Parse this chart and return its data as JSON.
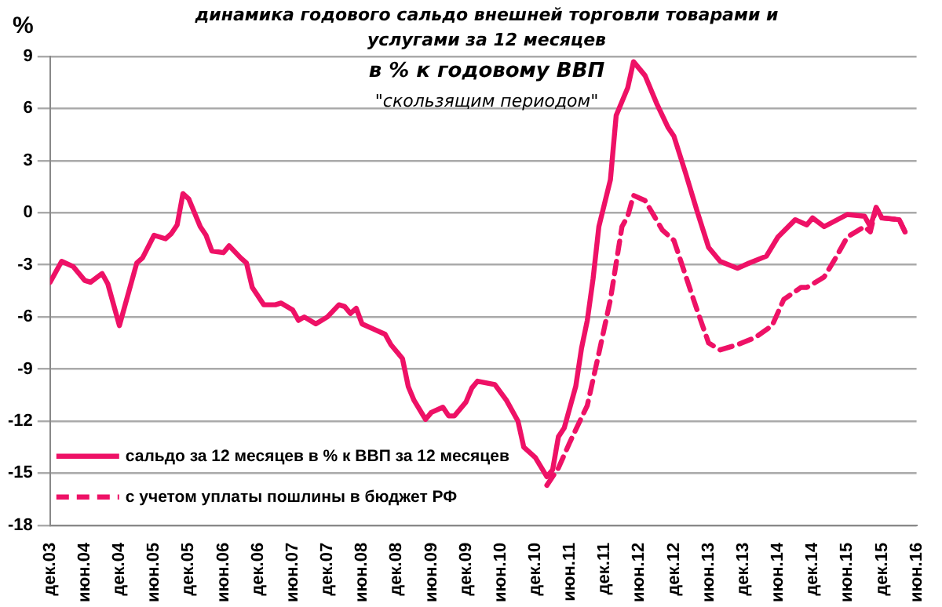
{
  "chart_data": {
    "type": "line",
    "title": "динамика годового сальдо внешней торговли товарами и услугами за 12 месяцев",
    "subtitle": "в % к годовому ВВП",
    "annotations": [
      "\"скользящим периодом\""
    ],
    "ylabel": "%",
    "xlim": [
      "2003-12",
      "2016-06"
    ],
    "xticks": [
      {
        "value": "2003-12",
        "label": "дек.03"
      },
      {
        "value": "2004-06",
        "label": "июн.04"
      },
      {
        "value": "2004-12",
        "label": "дек.04"
      },
      {
        "value": "2005-06",
        "label": "июн.05"
      },
      {
        "value": "2005-12",
        "label": "дек.05"
      },
      {
        "value": "2006-06",
        "label": "июн.06"
      },
      {
        "value": "2006-12",
        "label": "дек.06"
      },
      {
        "value": "2007-06",
        "label": "июн.07"
      },
      {
        "value": "2007-12",
        "label": "дек.07"
      },
      {
        "value": "2008-06",
        "label": "июн.08"
      },
      {
        "value": "2008-12",
        "label": "дек.08"
      },
      {
        "value": "2009-06",
        "label": "июн.09"
      },
      {
        "value": "2009-12",
        "label": "дек.09"
      },
      {
        "value": "2010-06",
        "label": "июн.10"
      },
      {
        "value": "2010-12",
        "label": "дек.10"
      },
      {
        "value": "2011-06",
        "label": "июн.11"
      },
      {
        "value": "2011-12",
        "label": "дек.11"
      },
      {
        "value": "2012-06",
        "label": "июн.12"
      },
      {
        "value": "2012-12",
        "label": "дек.12"
      },
      {
        "value": "2013-06",
        "label": "июн.13"
      },
      {
        "value": "2013-12",
        "label": "дек.13"
      },
      {
        "value": "2014-06",
        "label": "июн.14"
      },
      {
        "value": "2014-12",
        "label": "дек.14"
      },
      {
        "value": "2015-06",
        "label": "июн.15"
      },
      {
        "value": "2015-12",
        "label": "дек.15"
      },
      {
        "value": "2016-06",
        "label": "июн.16"
      }
    ],
    "ylim": [
      -18,
      9
    ],
    "yticks": [
      -18,
      -15,
      -12,
      -9,
      -6,
      -3,
      0,
      3,
      6,
      9
    ],
    "grid": "y",
    "legend": "bottom left",
    "marker": "none",
    "series": [
      {
        "name": "сальдо за 12 месяцев в % к ВВП за 12 месяцев",
        "color": "#ee1166",
        "line_style": "solid",
        "x": [
          "2003-12",
          "2004-02",
          "2004-04",
          "2004-05",
          "2004-06",
          "2004-07",
          "2004-09",
          "2004-10",
          "2004-12",
          "2005-01",
          "2005-03",
          "2005-04",
          "2005-06",
          "2005-08",
          "2005-09",
          "2005-10",
          "2005-11",
          "2005-12",
          "2006-02",
          "2006-03",
          "2006-04",
          "2006-06",
          "2006-07",
          "2006-09",
          "2006-10",
          "2006-11",
          "2007-01",
          "2007-03",
          "2007-04",
          "2007-06",
          "2007-07",
          "2007-08",
          "2007-10",
          "2007-12",
          "2008-02",
          "2008-03",
          "2008-04",
          "2008-05",
          "2008-06",
          "2008-08",
          "2008-10",
          "2008-11",
          "2009-01",
          "2009-02",
          "2009-03",
          "2009-05",
          "2009-06",
          "2009-08",
          "2009-09",
          "2009-10",
          "2009-12",
          "2010-01",
          "2010-02",
          "2010-05",
          "2010-07",
          "2010-09",
          "2010-10",
          "2010-12",
          "2011-02",
          "2011-03",
          "2011-04",
          "2011-05",
          "2011-07",
          "2011-08",
          "2011-09",
          "2011-10",
          "2011-11",
          "2012-01",
          "2012-02",
          "2012-04",
          "2012-05",
          "2012-07",
          "2012-09",
          "2012-11",
          "2012-12",
          "2013-02",
          "2013-04",
          "2013-06",
          "2013-08",
          "2013-11",
          "2014-01",
          "2014-04",
          "2014-06",
          "2014-09",
          "2014-11",
          "2014-12",
          "2015-02",
          "2015-06",
          "2015-09",
          "2015-10",
          "2015-11",
          "2015-12",
          "2016-03",
          "2016-04"
        ],
        "values": [
          -4.0,
          -2.8,
          -3.1,
          -3.5,
          -3.9,
          -4.0,
          -3.5,
          -4.1,
          -6.5,
          -5.3,
          -2.9,
          -2.6,
          -1.3,
          -1.5,
          -1.2,
          -0.7,
          1.1,
          0.8,
          -0.8,
          -1.3,
          -2.2,
          -2.3,
          -1.9,
          -2.6,
          -2.9,
          -4.3,
          -5.3,
          -5.3,
          -5.2,
          -5.6,
          -6.2,
          -6.0,
          -6.4,
          -6.0,
          -5.3,
          -5.4,
          -5.8,
          -5.5,
          -6.4,
          -6.7,
          -7.0,
          -7.6,
          -8.4,
          -10.0,
          -10.8,
          -11.9,
          -11.5,
          -11.2,
          -11.7,
          -11.7,
          -10.9,
          -10.1,
          -9.7,
          -9.9,
          -10.8,
          -12.0,
          -13.5,
          -14.1,
          -15.2,
          -14.8,
          -12.9,
          -12.4,
          -10.0,
          -7.8,
          -6.2,
          -3.8,
          -0.8,
          1.9,
          5.6,
          7.2,
          8.7,
          7.9,
          6.3,
          4.9,
          4.4,
          2.3,
          0.1,
          -2.0,
          -2.8,
          -3.2,
          -2.9,
          -2.5,
          -1.4,
          -0.4,
          -0.7,
          -0.3,
          -0.8,
          -0.1,
          -0.2,
          -0.8,
          0.3,
          -0.3,
          -0.4,
          -1.1
        ]
      },
      {
        "name": "с учетом уплаты пошлины в бюджет РФ",
        "color": "#ee1166",
        "line_style": "dashed",
        "x": [
          "2011-02",
          "2011-04",
          "2011-06",
          "2011-09",
          "2011-11",
          "2012-01",
          "2012-03",
          "2012-04",
          "2012-05",
          "2012-07",
          "2012-10",
          "2012-12",
          "2013-01",
          "2013-04",
          "2013-06",
          "2013-08",
          "2013-11",
          "2014-02",
          "2014-05",
          "2014-07",
          "2014-10",
          "2014-11",
          "2015-02",
          "2015-04",
          "2015-06",
          "2015-09",
          "2015-10",
          "2015-11",
          "2015-12",
          "2016-03",
          "2016-04"
        ],
        "values": [
          -15.7,
          -14.7,
          -13.2,
          -11.1,
          -8.1,
          -5.0,
          -0.8,
          -0.2,
          1.0,
          0.7,
          -1.0,
          -1.6,
          -2.6,
          -5.6,
          -7.5,
          -7.9,
          -7.6,
          -7.2,
          -6.5,
          -5.0,
          -4.3,
          -4.3,
          -3.7,
          -2.6,
          -1.4,
          -0.8,
          -1.1,
          0.3,
          -0.3,
          -0.4,
          -1.1
        ]
      }
    ]
  }
}
